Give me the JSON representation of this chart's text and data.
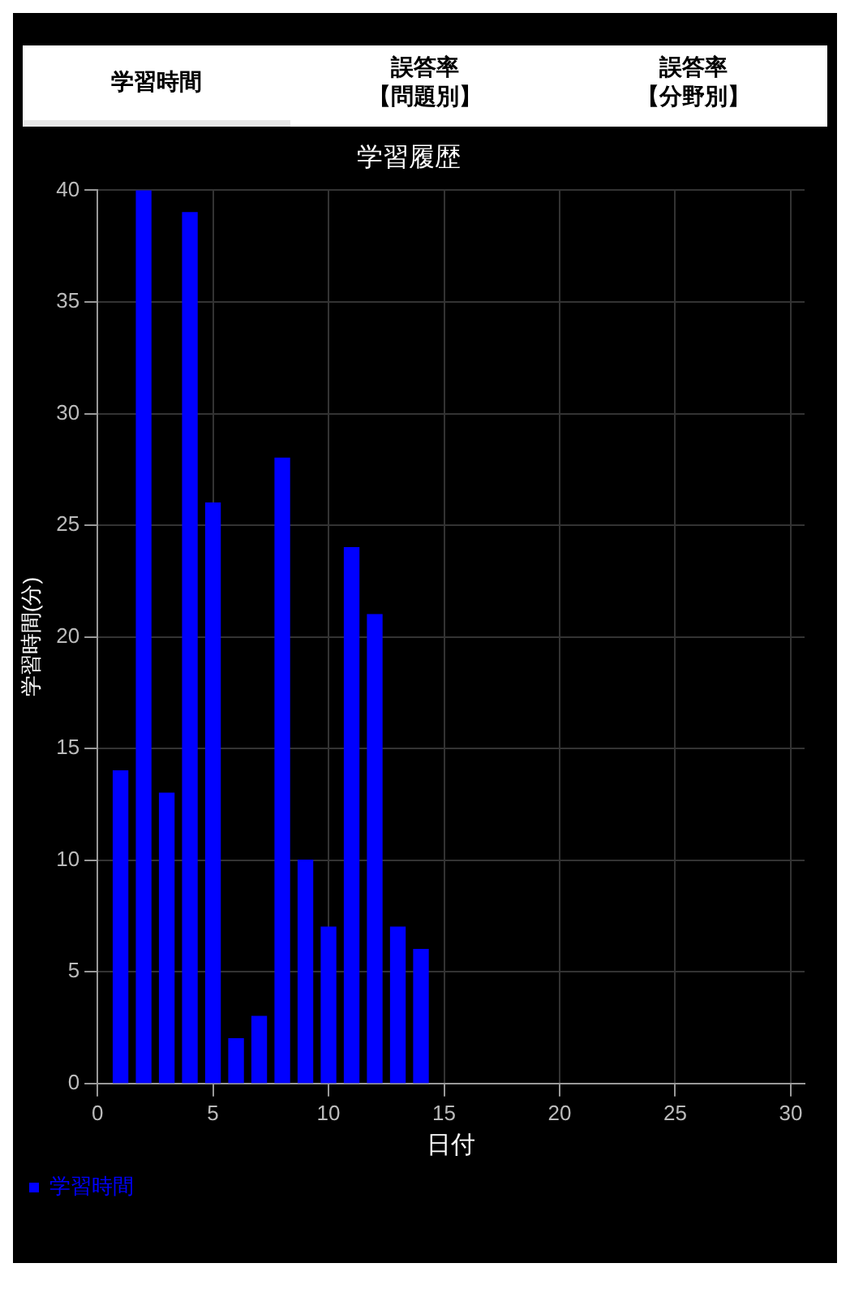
{
  "chart_data": {
    "type": "bar",
    "title": "学習履歴",
    "xlabel": "日付",
    "ylabel": "学習時間(分)",
    "annotations": [
      "学習時間",
      "誤答率【問題別】",
      "誤答率【分野別】"
    ],
    "x": [
      1,
      2,
      3,
      4,
      5,
      6,
      7,
      8,
      9,
      10,
      11,
      12,
      13,
      14
    ],
    "series": [
      {
        "name": "学習時間",
        "color": "#0000ff",
        "values": [
          14,
          40,
          13,
          39,
          26,
          2,
          3,
          28,
          10,
          7,
          24,
          21,
          7,
          6
        ]
      }
    ],
    "xlim": [
      0,
      30.6
    ],
    "xticks": [
      0,
      5,
      10,
      15,
      20,
      25,
      30
    ],
    "ylim": [
      0,
      40
    ],
    "yticks": [
      0,
      5,
      10,
      15,
      20,
      25,
      30,
      35,
      40
    ],
    "grid": true,
    "legend": "bottom left"
  }
}
